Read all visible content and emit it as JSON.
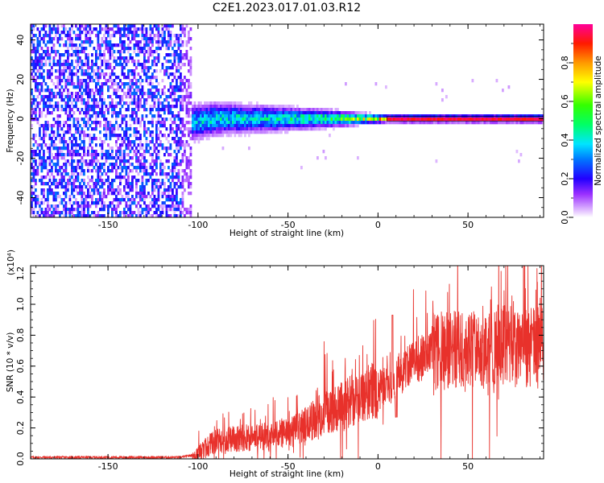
{
  "title": "C2E1.2023.017.01.03.R12",
  "chart_data": [
    {
      "type": "heatmap",
      "xlabel": "Height of straight line (km)",
      "ylabel": "Frequency (Hz)",
      "xlim": [
        -193,
        92
      ],
      "ylim": [
        -50,
        48
      ],
      "x_ticks": [
        -150,
        -100,
        -50,
        0,
        50
      ],
      "y_ticks": [
        -40,
        -20,
        0,
        20,
        40
      ],
      "x_tick_labels": [
        "-150",
        "-100",
        "-50",
        "0",
        "50"
      ],
      "y_tick_labels": [
        "-40",
        "-20",
        "0",
        "20",
        "40"
      ],
      "colorbar": {
        "label": "Normalized spectral amplitude",
        "range": [
          0,
          1
        ],
        "ticks": [
          0.0,
          0.2,
          0.4,
          0.6,
          0.8
        ],
        "tick_labels": [
          "0.0",
          "0.2",
          "0.4",
          "0.6",
          "0.8"
        ]
      },
      "features": {
        "noise_region_x": [
          -193,
          -103
        ],
        "noise_amplitude": 0.3,
        "signal_band": [
          {
            "x": -103,
            "center_hz": -2,
            "halfwidth_hz": 8,
            "peak": 0.45
          },
          {
            "x": -90,
            "center_hz": 0,
            "halfwidth_hz": 7,
            "peak": 0.5
          },
          {
            "x": -70,
            "center_hz": 0,
            "halfwidth_hz": 6,
            "peak": 0.5
          },
          {
            "x": -50,
            "center_hz": 0,
            "halfwidth_hz": 5,
            "peak": 0.55
          },
          {
            "x": -30,
            "center_hz": 0,
            "halfwidth_hz": 4,
            "peak": 0.6
          },
          {
            "x": -10,
            "center_hz": 0,
            "halfwidth_hz": 2.5,
            "peak": 0.75
          },
          {
            "x": 5,
            "center_hz": 0,
            "halfwidth_hz": 1.5,
            "peak": 0.95
          },
          {
            "x": 92,
            "center_hz": 0,
            "halfwidth_hz": 1.5,
            "peak": 0.95
          }
        ]
      }
    },
    {
      "type": "line",
      "xlabel": "Height of straight line (km)",
      "ylabel": "SNR (10 * v/v)",
      "y_multiplier": "(x10⁴)",
      "xlim": [
        -193,
        92
      ],
      "ylim": [
        0,
        1.25
      ],
      "x_ticks": [
        -150,
        -100,
        -50,
        0,
        50
      ],
      "y_ticks": [
        0.0,
        0.2,
        0.4,
        0.6,
        0.8,
        1.0,
        1.2
      ],
      "x_tick_labels": [
        "-150",
        "-100",
        "-50",
        "0",
        "50"
      ],
      "y_tick_labels": [
        "0.0",
        "0.2",
        "0.4",
        "0.6",
        "0.8",
        "1.0",
        "1.2"
      ],
      "color": "#e8312b",
      "x": [
        -193,
        -150,
        -110,
        -100,
        -95,
        -90,
        -80,
        -70,
        -60,
        -50,
        -45,
        -40,
        -30,
        -20,
        -10,
        0,
        10,
        20,
        30,
        40,
        50,
        60,
        70,
        80,
        92
      ],
      "y": [
        0.01,
        0.01,
        0.01,
        0.03,
        0.08,
        0.12,
        0.13,
        0.14,
        0.15,
        0.17,
        0.19,
        0.22,
        0.3,
        0.34,
        0.42,
        0.45,
        0.52,
        0.63,
        0.68,
        0.7,
        0.72,
        0.73,
        0.74,
        0.7,
        0.75
      ]
    }
  ]
}
